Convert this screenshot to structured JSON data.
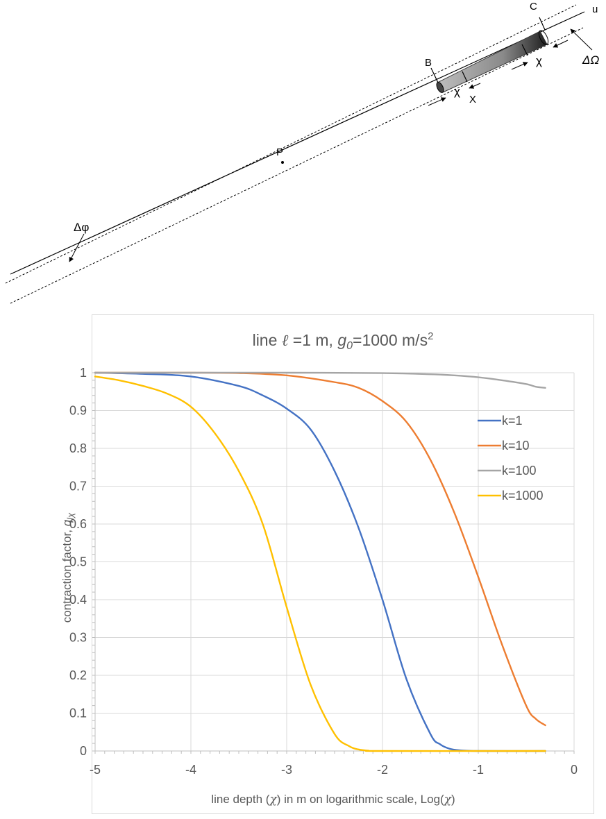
{
  "diagram": {
    "labels": {
      "p": "P",
      "b": "B",
      "c": "C",
      "u": "u",
      "chi1": "χ",
      "chi2": "χ",
      "x": "X",
      "delta_phi": "Δφ",
      "delta_omega": "ΔΩ"
    }
  },
  "chart_data": {
    "type": "line",
    "title": {
      "prefix": "line ",
      "ell": "ℓ",
      "mid": " =1 m, ",
      "g": "g",
      "g_sub": "0",
      "rest": "=1000 m/s",
      "sup": "2"
    },
    "ylabel": {
      "main": "contraction factor, ",
      "q": "q",
      "sub": "lχ"
    },
    "xlabel": {
      "main": "line depth (",
      "chi": "χ",
      "mid": ") in m on logarithmic scale, Log(",
      "chi2": "χ",
      "end": ")"
    },
    "xlim": [
      -5,
      0
    ],
    "ylim": [
      0,
      1
    ],
    "xticks": [
      "-5",
      "-4",
      "-3",
      "-2",
      "-1",
      "0"
    ],
    "yticks": [
      "0",
      "0.1",
      "0.2",
      "0.3",
      "0.4",
      "0.5",
      "0.6",
      "0.7",
      "0.8",
      "0.9",
      "1"
    ],
    "grid": true,
    "legend_position": "right",
    "series": [
      {
        "name": "k=1",
        "color": "#4472c4",
        "x": [
          -5,
          -4.5,
          -4,
          -3.5,
          -3.25,
          -3,
          -2.75,
          -2.5,
          -2.25,
          -2,
          -1.75,
          -1.5,
          -1.4,
          -1.3,
          -1.2,
          -1.0,
          -0.3
        ],
        "y": [
          1.0,
          0.997,
          0.99,
          0.965,
          0.94,
          0.905,
          0.85,
          0.74,
          0.59,
          0.4,
          0.19,
          0.045,
          0.018,
          0.006,
          0.002,
          0.0,
          0.0
        ]
      },
      {
        "name": "k=10",
        "color": "#ed7d31",
        "x": [
          -5,
          -4,
          -3.5,
          -3,
          -2.5,
          -2.25,
          -2,
          -1.75,
          -1.5,
          -1.25,
          -1.0,
          -0.75,
          -0.5,
          -0.4,
          -0.3
        ],
        "y": [
          1.0,
          1.0,
          0.999,
          0.993,
          0.975,
          0.96,
          0.925,
          0.87,
          0.77,
          0.63,
          0.46,
          0.28,
          0.12,
          0.085,
          0.068
        ]
      },
      {
        "name": "k=100",
        "color": "#a5a5a5",
        "x": [
          -5,
          -4,
          -3,
          -2,
          -1.5,
          -1.25,
          -1.0,
          -0.75,
          -0.5,
          -0.4,
          -0.3
        ],
        "y": [
          1.0,
          1.0,
          1.0,
          0.999,
          0.996,
          0.993,
          0.988,
          0.98,
          0.97,
          0.963,
          0.96
        ]
      },
      {
        "name": "k=1000",
        "color": "#ffc000",
        "x": [
          -5,
          -4.75,
          -4.5,
          -4.25,
          -4,
          -3.75,
          -3.5,
          -3.25,
          -3.0,
          -2.75,
          -2.5,
          -2.35,
          -2.25,
          -2.15,
          -2.0,
          -0.3
        ],
        "y": [
          0.99,
          0.98,
          0.965,
          0.945,
          0.91,
          0.84,
          0.74,
          0.6,
          0.38,
          0.175,
          0.045,
          0.013,
          0.004,
          0.001,
          0.0,
          0.0
        ]
      }
    ]
  }
}
